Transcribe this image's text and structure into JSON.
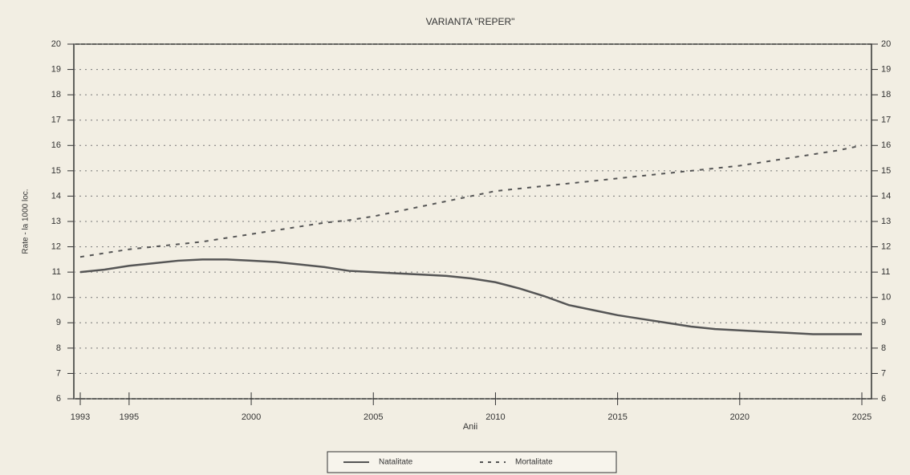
{
  "chart_data": {
    "type": "line",
    "title": "VARIANTA \"REPER\"",
    "x_label": "Anii",
    "y_label": "Rate - la 1000 loc.",
    "x": [
      1993,
      1994,
      1995,
      1996,
      1997,
      1998,
      1999,
      2000,
      2001,
      2002,
      2003,
      2004,
      2005,
      2006,
      2007,
      2008,
      2009,
      2010,
      2011,
      2012,
      2013,
      2014,
      2015,
      2016,
      2017,
      2018,
      2019,
      2020,
      2021,
      2022,
      2023,
      2024,
      2025
    ],
    "series": [
      {
        "name": "Natalitate",
        "color": "#555555",
        "style": "solid",
        "values": [
          11.0,
          11.1,
          11.25,
          11.35,
          11.45,
          11.5,
          11.5,
          11.45,
          11.4,
          11.3,
          11.2,
          11.05,
          11.0,
          10.95,
          10.9,
          10.85,
          10.75,
          10.6,
          10.35,
          10.05,
          9.7,
          9.5,
          9.3,
          9.15,
          9.0,
          8.85,
          8.75,
          8.7,
          8.65,
          8.6,
          8.55,
          8.55,
          8.55
        ]
      },
      {
        "name": "Mortalitate",
        "color": "#555555",
        "style": "dashed",
        "values": [
          11.6,
          11.75,
          11.9,
          12.0,
          12.1,
          12.2,
          12.35,
          12.5,
          12.65,
          12.8,
          12.95,
          13.05,
          13.2,
          13.4,
          13.6,
          13.8,
          14.0,
          14.2,
          14.3,
          14.4,
          14.5,
          14.6,
          14.7,
          14.8,
          14.9,
          15.0,
          15.1,
          15.2,
          15.35,
          15.5,
          15.65,
          15.8,
          16.0
        ]
      }
    ],
    "xlim": [
      1993,
      2025
    ],
    "xticks": [
      1993,
      1995,
      2000,
      2005,
      2010,
      2015,
      2020,
      2025
    ],
    "ylim": [
      6,
      20
    ],
    "yticks": [
      6,
      7,
      8,
      9,
      10,
      11,
      12,
      13,
      14,
      15,
      16,
      17,
      18,
      19,
      20
    ],
    "y2lim": [
      6,
      20
    ],
    "y2ticks": [
      6,
      7,
      8,
      9,
      10,
      11,
      12,
      13,
      14,
      15,
      16,
      17,
      18,
      19,
      20
    ],
    "grid": true,
    "legend": "bottom"
  }
}
